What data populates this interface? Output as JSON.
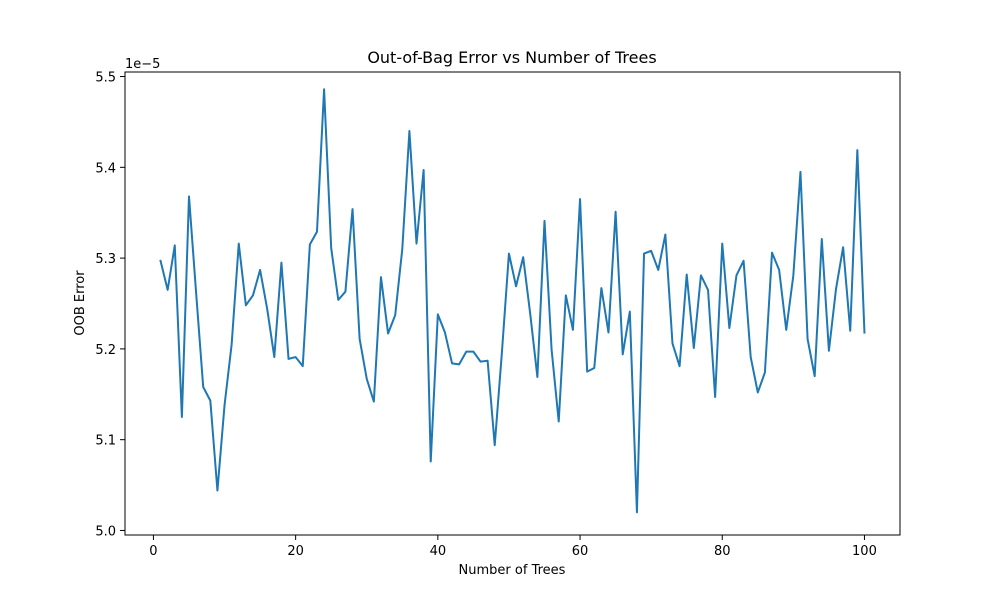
{
  "chart_data": {
    "type": "line",
    "title": "Out-of-Bag Error vs Number of Trees",
    "xlabel": "Number of Trees",
    "ylabel": "OOB Error",
    "offset_label": "1e−5",
    "xlim": [
      -4,
      105
    ],
    "ylim": [
      4.995,
      5.505
    ],
    "x_ticks": [
      0,
      20,
      40,
      60,
      80,
      100
    ],
    "y_ticks": [
      5.0,
      5.1,
      5.2,
      5.3,
      5.4,
      5.5
    ],
    "y_tick_labels": [
      "5.0",
      "5.1",
      "5.2",
      "5.3",
      "5.4",
      "5.5"
    ],
    "grid": false,
    "series": [
      {
        "color": "#1f77b4",
        "x": [
          1,
          2,
          3,
          4,
          5,
          6,
          7,
          8,
          9,
          10,
          11,
          12,
          13,
          14,
          15,
          16,
          17,
          18,
          19,
          20,
          21,
          22,
          23,
          24,
          25,
          26,
          27,
          28,
          29,
          30,
          31,
          32,
          33,
          34,
          35,
          36,
          37,
          38,
          39,
          40,
          41,
          42,
          43,
          44,
          45,
          46,
          47,
          48,
          49,
          50,
          51,
          52,
          53,
          54,
          55,
          56,
          57,
          58,
          59,
          60,
          61,
          62,
          63,
          64,
          65,
          66,
          67,
          68,
          69,
          70,
          71,
          72,
          73,
          74,
          75,
          76,
          77,
          78,
          79,
          80,
          81,
          82,
          83,
          84,
          85,
          86,
          87,
          88,
          89,
          90,
          91,
          92,
          93,
          94,
          95,
          96,
          97,
          98,
          99,
          100
        ],
        "values": [
          5.297,
          5.265,
          5.314,
          5.125,
          5.368,
          5.262,
          5.158,
          5.143,
          5.044,
          5.138,
          5.205,
          5.316,
          5.248,
          5.259,
          5.287,
          5.244,
          5.191,
          5.295,
          5.189,
          5.191,
          5.181,
          5.315,
          5.329,
          5.486,
          5.311,
          5.254,
          5.263,
          5.354,
          5.211,
          5.167,
          5.142,
          5.279,
          5.217,
          5.237,
          5.31,
          5.44,
          5.316,
          5.397,
          5.076,
          5.238,
          5.218,
          5.184,
          5.183,
          5.197,
          5.197,
          5.186,
          5.187,
          5.094,
          5.195,
          5.305,
          5.269,
          5.301,
          5.238,
          5.169,
          5.341,
          5.199,
          5.12,
          5.259,
          5.221,
          5.365,
          5.175,
          5.179,
          5.267,
          5.218,
          5.351,
          5.194,
          5.241,
          5.02,
          5.305,
          5.308,
          5.287,
          5.326,
          5.206,
          5.181,
          5.282,
          5.201,
          5.281,
          5.265,
          5.147,
          5.316,
          5.223,
          5.281,
          5.297,
          5.191,
          5.152,
          5.174,
          5.306,
          5.287,
          5.221,
          5.281,
          5.395,
          5.211,
          5.17,
          5.321,
          5.198,
          5.266,
          5.312,
          5.22,
          5.419,
          5.218
        ]
      }
    ]
  }
}
